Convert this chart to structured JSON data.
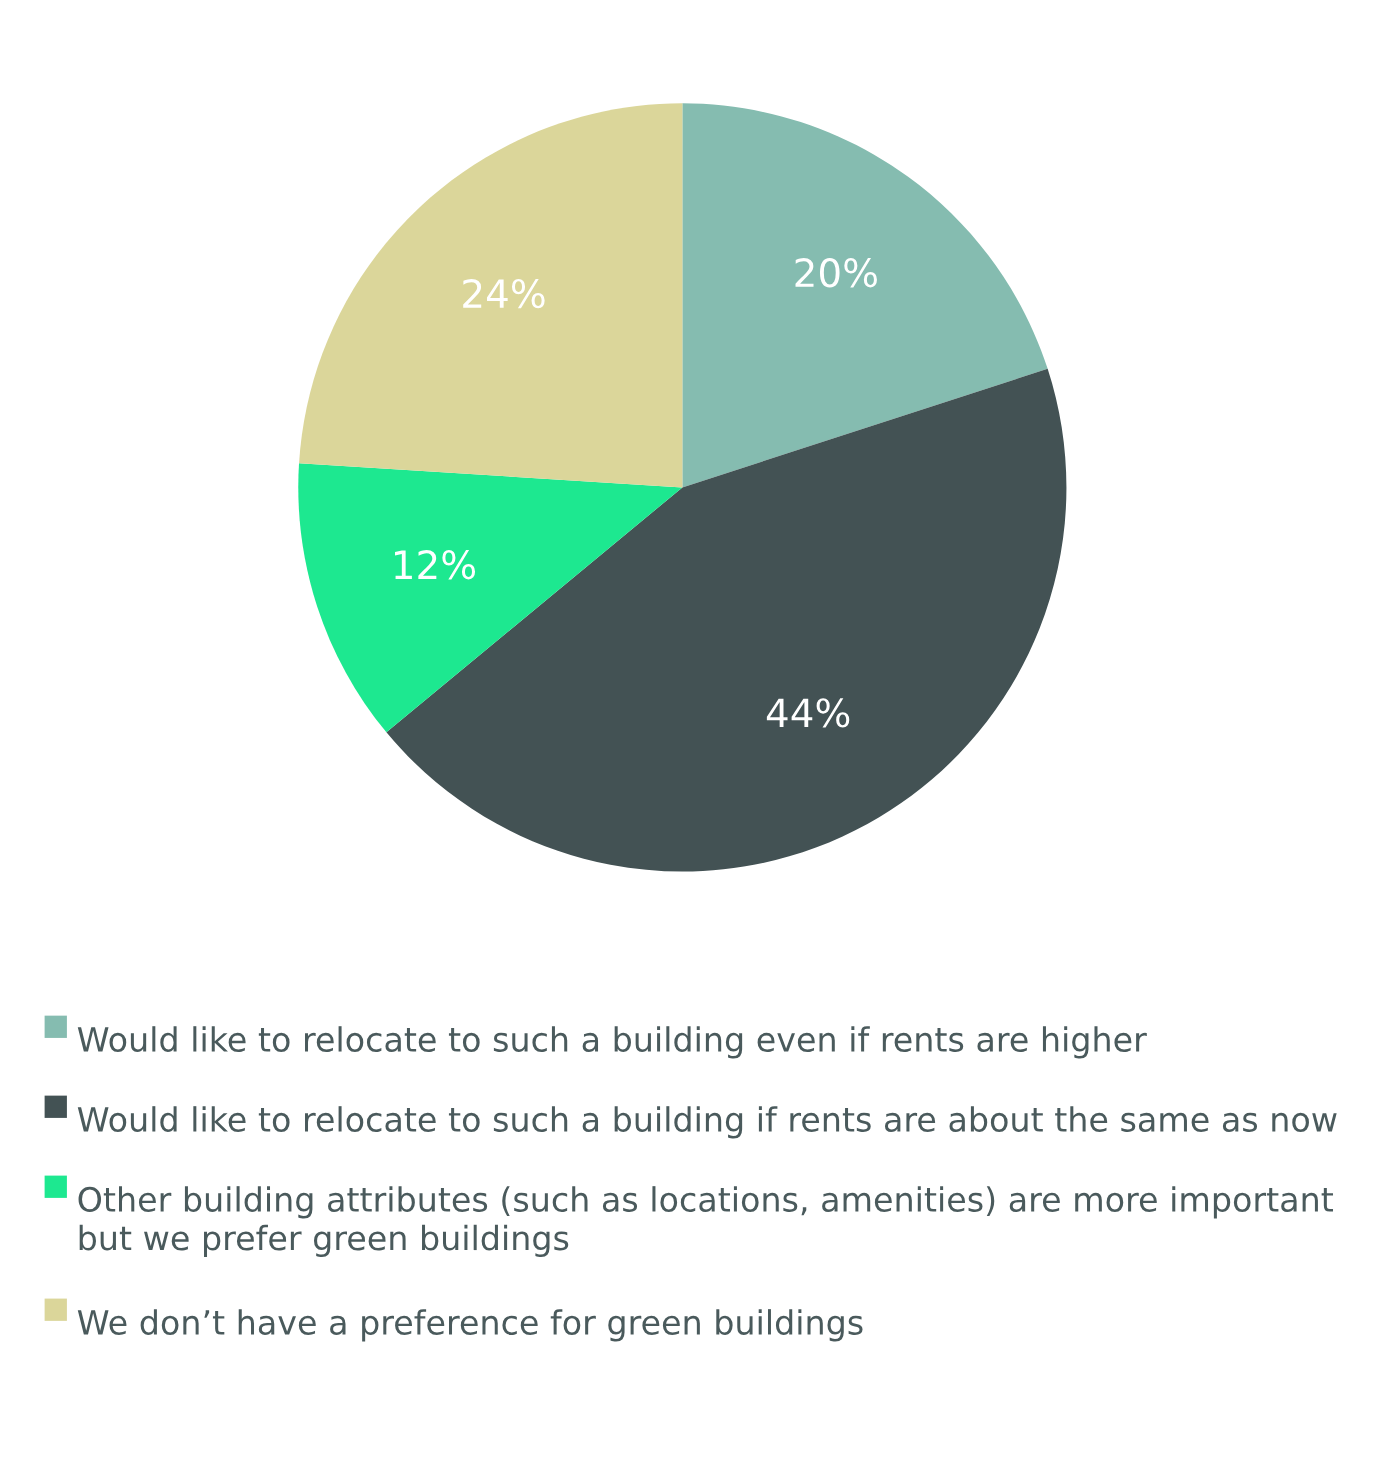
{
  "chart_data": {
    "type": "pie",
    "categories": [
      "Would like to relocate to such a building even if rents are higher",
      "Would like to relocate to such a building if rents are about the same as now",
      "Other building attributes (such as locations, amenities) are more important but we prefer green buildings",
      "We don’t have a preference for green buildings"
    ],
    "values": [
      20,
      44,
      12,
      24
    ],
    "colors": [
      "#85bcb0",
      "#435254",
      "#1de890",
      "#dbd69a"
    ],
    "value_labels": [
      "20%",
      "44%",
      "12%",
      "24%"
    ],
    "legend": "bottom"
  }
}
